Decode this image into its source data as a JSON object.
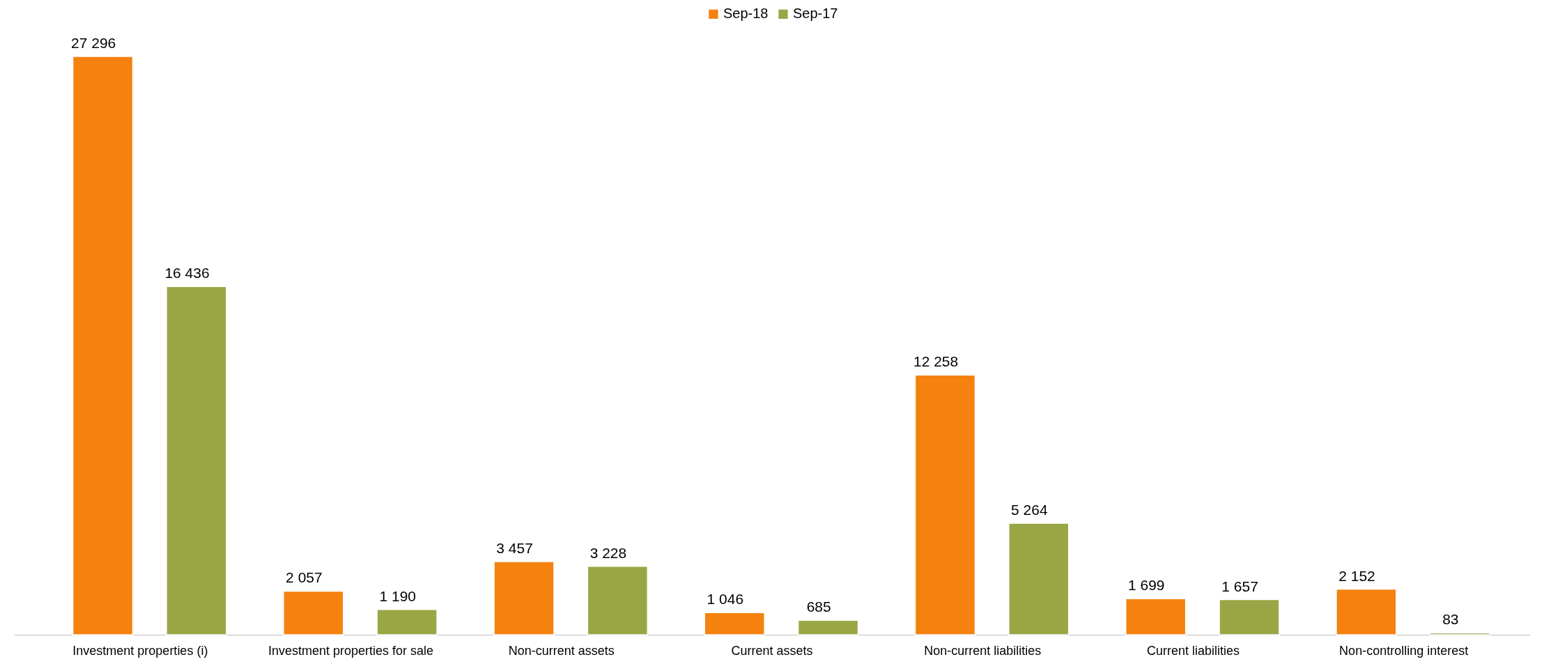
{
  "chart_data": {
    "type": "bar",
    "categories": [
      "Investment properties (i)",
      "Investment properties for sale",
      "Non-current assets",
      "Current assets",
      "Non-current liabilities",
      "Current liabilities",
      "Non-controlling interest"
    ],
    "series": [
      {
        "name": "Sep-18",
        "color": "#f5820f",
        "values": [
          27296,
          2057,
          3457,
          1046,
          12258,
          1699,
          2152
        ],
        "value_labels": [
          "27 296",
          "2 057",
          "3 457",
          "1 046",
          "12 258",
          "1 699",
          "2 152"
        ]
      },
      {
        "name": "Sep-17",
        "color": "#9aa645",
        "values": [
          16436,
          1190,
          3228,
          685,
          5264,
          1657,
          83
        ],
        "value_labels": [
          "16 436",
          "1 190",
          "3 228",
          "685",
          "5 264",
          "1 657",
          "83"
        ]
      }
    ],
    "legend": "top",
    "tick_labels": "x"
  }
}
